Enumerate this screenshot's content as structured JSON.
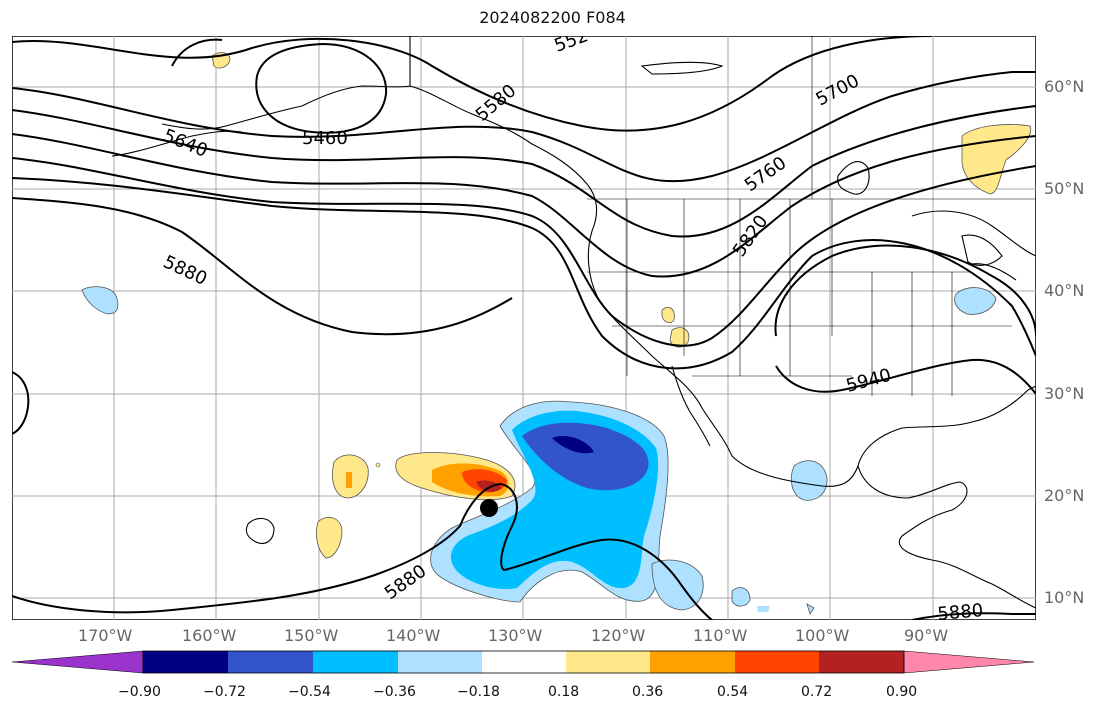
{
  "title": "2024082200 F084",
  "map": {
    "projection": "lat-lon",
    "extent": {
      "lon": [
        -180,
        -80
      ],
      "lat": [
        8,
        65
      ]
    },
    "gridlines": true,
    "lon_labels": [
      "170°W",
      "160°W",
      "150°W",
      "140°W",
      "130°W",
      "120°W",
      "110°W",
      "100°W",
      "90°W"
    ],
    "lat_labels": [
      "60°N",
      "50°N",
      "40°N",
      "30°N",
      "20°N",
      "10°N"
    ],
    "contour_labels": [
      "552",
      "5460",
      "5640",
      "5580",
      "5700",
      "5760",
      "5820",
      "5880",
      "5940",
      "5880",
      "5880"
    ],
    "center_marker": "filled-circle"
  },
  "colorbar": {
    "colors": [
      "#9933cc",
      "#000080",
      "#3355cc",
      "#00bfff",
      "#aee0ff",
      "#ffffff",
      "#ffe88a",
      "#ffa200",
      "#ff4500",
      "#b22222",
      "#ff88aa"
    ],
    "tick_labels": [
      "−0.90",
      "−0.72",
      "−0.54",
      "−0.36",
      "−0.18",
      "0.18",
      "0.36",
      "0.54",
      "0.72",
      "0.90"
    ]
  },
  "colors": {
    "contour": "#000000",
    "grid": "#aaaaaa",
    "coast": "#000000"
  }
}
